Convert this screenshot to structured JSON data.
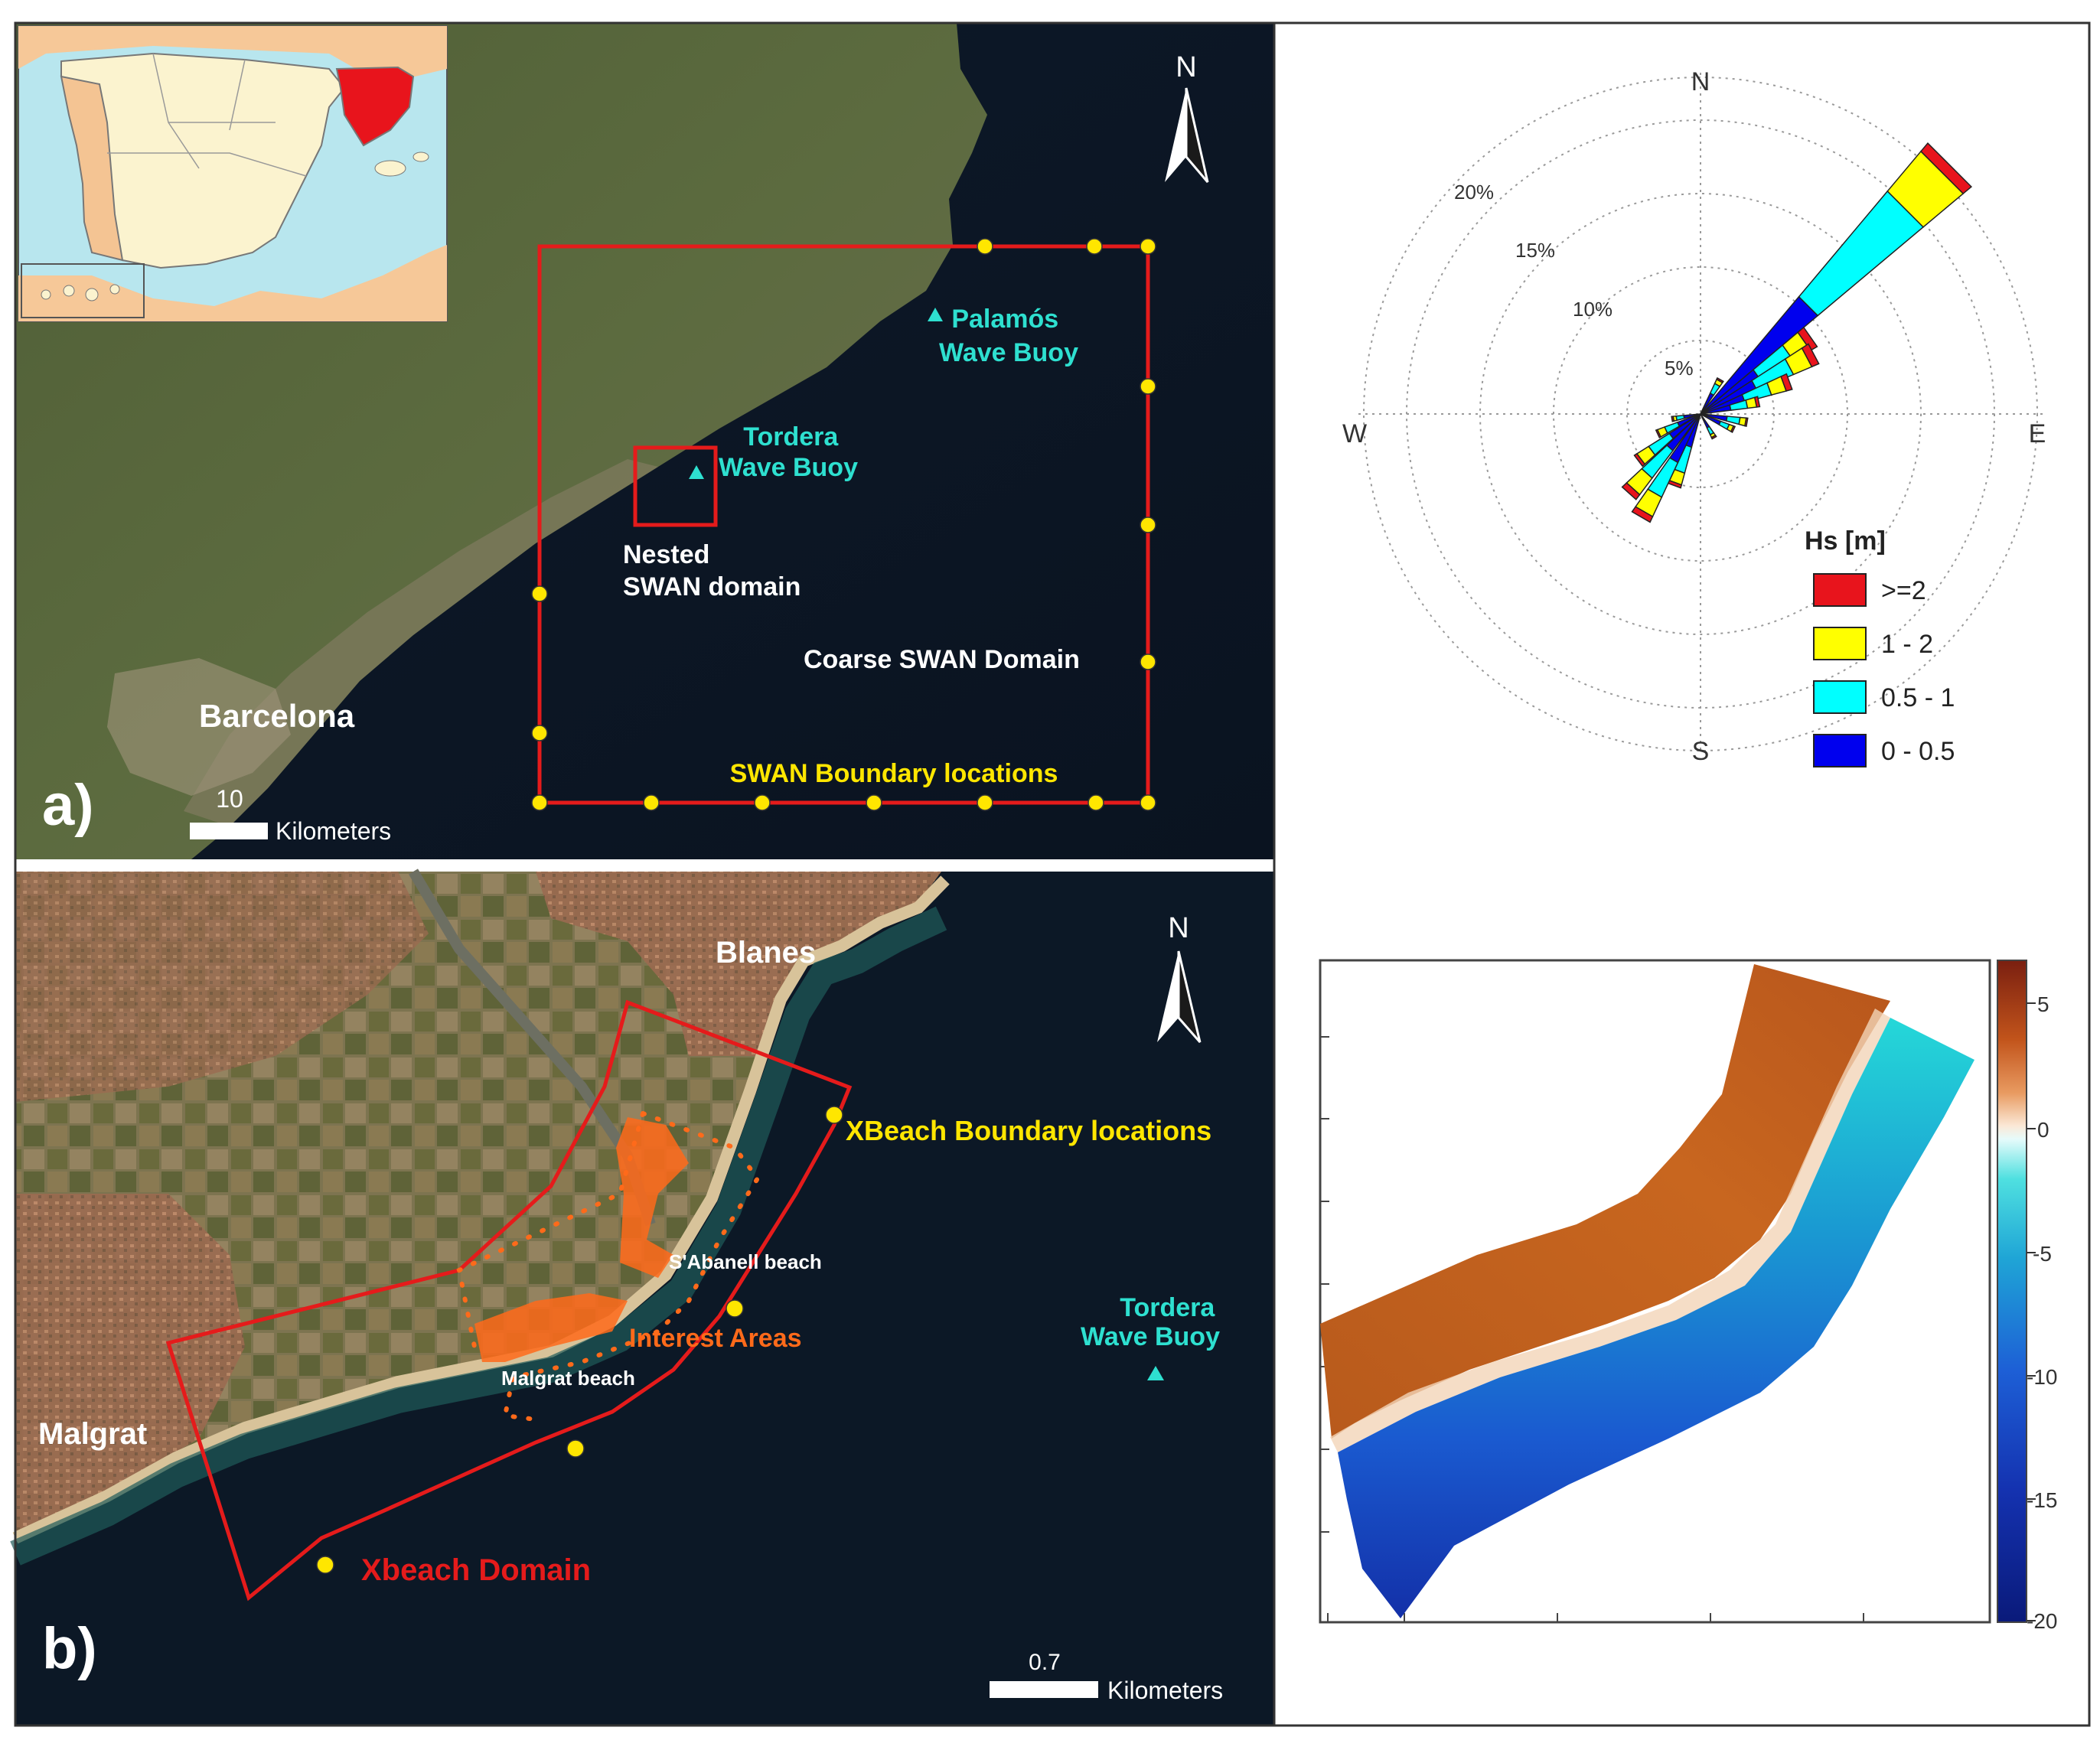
{
  "panel_a": {
    "letter": "a)",
    "north": "N",
    "scale_value": "10",
    "scale_unit": "Kilometers",
    "city": "Barcelona",
    "buoy_palamos": [
      "Palamós",
      "Wave Buoy"
    ],
    "buoy_tordera": [
      "Tordera",
      "Wave Buoy"
    ],
    "nested_domain": [
      "Nested",
      "SWAN domain"
    ],
    "coarse_domain": "Coarse SWAN Domain",
    "boundary_label": "SWAN Boundary locations"
  },
  "panel_b": {
    "letter": "b)",
    "north": "N",
    "scale_value": "0.7",
    "scale_unit": "Kilometers",
    "town_blanes": "Blanes",
    "town_malgrat": "Malgrat",
    "xbeach_boundary": "XBeach Boundary locations",
    "sabanell": "S'Abanell beach",
    "malgrat_beach": "Malgrat beach",
    "interest_areas": "Interest Areas",
    "xbeach_domain": "Xbeach Domain",
    "buoy_tordera": [
      "Tordera",
      "Wave Buoy"
    ]
  },
  "wave_rose": {
    "cardinals": {
      "N": "N",
      "E": "E",
      "S": "S",
      "W": "W"
    },
    "rings": [
      "5%",
      "10%",
      "15%",
      "20%"
    ],
    "legend_title": "Hs [m]",
    "legend": [
      {
        "label": ">=2",
        "color": "#e8141c"
      },
      {
        "label": "1 - 2",
        "color": "#ffff00"
      },
      {
        "label": "0.5 - 1",
        "color": "#00ffff"
      },
      {
        "label": "0 - 0.5",
        "color": "#0000ee"
      }
    ]
  },
  "bathymetry": {
    "colorbar_ticks": [
      "5",
      "0",
      "-5",
      "-10",
      "-15",
      "-20"
    ]
  },
  "colors": {
    "domain_red": "#e51b1b",
    "boundary_yellow": "#ffe600",
    "buoy_cyan": "#2ee0d0",
    "label_yellow": "#ffe600",
    "interest_orange": "#ff6a1a"
  }
}
